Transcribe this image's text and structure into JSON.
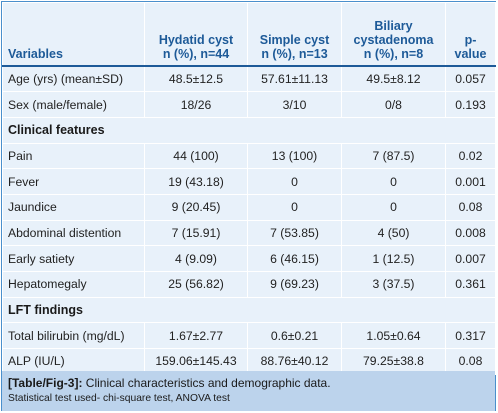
{
  "table": {
    "headers": [
      [
        "Variables"
      ],
      [
        "Hydatid cyst",
        "n (%), n=44"
      ],
      [
        "Simple cyst",
        "n (%), n=13"
      ],
      [
        "Biliary",
        "cystadenoma",
        "n (%), n=8"
      ],
      [
        "p-",
        "value"
      ]
    ],
    "rows": [
      {
        "type": "data",
        "cells": [
          "Age (yrs) (mean±SD)",
          "48.5±12.5",
          "57.61±11.13",
          "49.5±8.12",
          "0.057"
        ]
      },
      {
        "type": "data",
        "cells": [
          "Sex (male/female)",
          "18/26",
          "3/10",
          "0/8",
          "0.193"
        ]
      },
      {
        "type": "section",
        "cells": [
          "Clinical features"
        ]
      },
      {
        "type": "data",
        "cells": [
          "Pain",
          "44 (100)",
          "13 (100)",
          "7 (87.5)",
          "0.02"
        ]
      },
      {
        "type": "data",
        "cells": [
          "Fever",
          "19 (43.18)",
          "0",
          "0",
          "0.001"
        ]
      },
      {
        "type": "data",
        "cells": [
          "Jaundice",
          "9 (20.45)",
          "0",
          "0",
          "0.08"
        ]
      },
      {
        "type": "data",
        "cells": [
          "Abdominal distention",
          "7 (15.91)",
          "7 (53.85)",
          "4 (50)",
          "0.008"
        ]
      },
      {
        "type": "data",
        "cells": [
          "Early satiety",
          "4 (9.09)",
          "6 (46.15)",
          "1 (12.5)",
          "0.007"
        ]
      },
      {
        "type": "data",
        "cells": [
          "Hepatomegaly",
          "25 (56.82)",
          "9 (69.23)",
          "3 (37.5)",
          "0.361"
        ]
      },
      {
        "type": "section",
        "cells": [
          "LFT findings"
        ]
      },
      {
        "type": "data",
        "cells": [
          "Total bilirubin (mg/dL)",
          "1.67±2.77",
          "0.6±0.21",
          "1.05±0.64",
          "0.317"
        ]
      },
      {
        "type": "data",
        "cells": [
          "ALP (IU/L)",
          "159.06±145.43",
          "88.76±40.12",
          "79.25±38.8",
          "0.08"
        ]
      }
    ]
  },
  "caption": {
    "reference": "[Table/Fig-3]:",
    "title": "Clinical characteristics and demographic data.",
    "note": "Statistical test used- chi-square test, ANOVA test"
  }
}
